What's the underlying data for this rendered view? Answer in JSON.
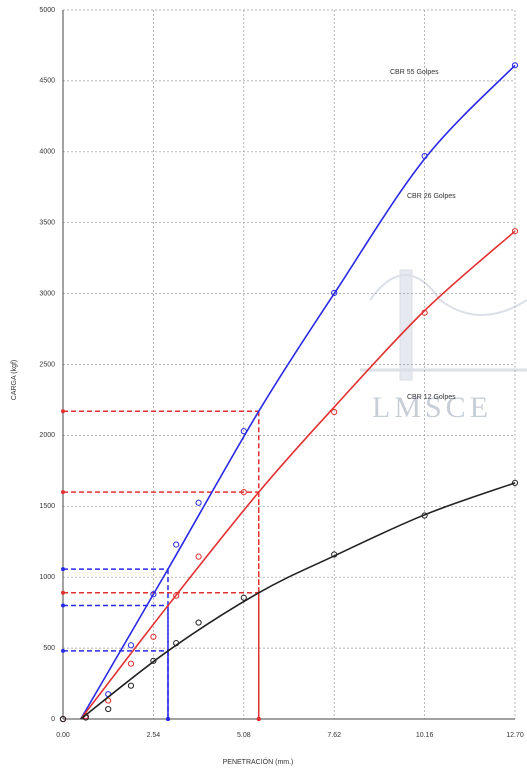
{
  "chart_data": {
    "type": "scatter",
    "x_label": "PENETRACIÓN (mm.)",
    "y_label": "CARGA (kgf)",
    "watermark": "LMSCE",
    "xlim": [
      0,
      12.7
    ],
    "ylim": [
      0,
      5000
    ],
    "xticks": [
      {
        "value": 0,
        "label": "0.00"
      },
      2.54,
      5.08,
      7.62,
      10.16,
      {
        "value": 12.7,
        "label": "12.70"
      }
    ],
    "yticks": [
      0,
      500,
      1000,
      1500,
      2000,
      2500,
      3000,
      3500,
      4000,
      4500,
      5000
    ],
    "grid": true,
    "series": [
      {
        "name": "CBR 55 Golpes",
        "color": "#2a2ae6",
        "x": [
          0,
          0.64,
          1.27,
          1.91,
          2.54,
          3.18,
          3.81,
          5.08,
          7.62,
          10.16,
          12.7
        ],
        "values": [
          0,
          20,
          175,
          520,
          880,
          1230,
          1525,
          2030,
          3005,
          3970,
          4610
        ],
        "fit": {
          "x": [
            0.5,
            2.95,
            5.5,
            7.62,
            10.16,
            12.7
          ],
          "values": [
            0,
            1057,
            2170,
            3000,
            3950,
            4610
          ]
        }
      },
      {
        "name": "CBR 26 Golpes",
        "color": "#e23030",
        "x": [
          0,
          0.64,
          1.27,
          1.91,
          2.54,
          3.18,
          3.81,
          5.08,
          7.62,
          10.16,
          12.7
        ],
        "values": [
          0,
          20,
          130,
          390,
          580,
          870,
          1145,
          1600,
          2165,
          2865,
          3440
        ],
        "fit": {
          "x": [
            0.5,
            2.95,
            5.5,
            7.62,
            10.16,
            12.7
          ],
          "values": [
            0,
            800,
            1600,
            2200,
            2880,
            3440
          ]
        }
      },
      {
        "name": "CBR 12 Golpes",
        "color": "#222222",
        "x": [
          0,
          0.64,
          1.27,
          1.91,
          2.54,
          3.18,
          3.81,
          5.08,
          7.62,
          10.16,
          12.7
        ],
        "values": [
          0,
          10,
          70,
          235,
          410,
          535,
          680,
          855,
          1160,
          1435,
          1665
        ],
        "fit": {
          "x": [
            0.5,
            2.95,
            5.5,
            7.62,
            10.16,
            12.7
          ],
          "values": [
            0,
            480,
            890,
            1150,
            1440,
            1665
          ]
        }
      }
    ],
    "reference_lines": [
      {
        "x": 2.95,
        "y": 1057,
        "color": "#2a2ae6"
      },
      {
        "x": 2.95,
        "y": 800,
        "color": "#2a2ae6"
      },
      {
        "x": 2.95,
        "y": 480,
        "color": "#2a2ae6"
      },
      {
        "x": 5.5,
        "y": 2170,
        "color": "#e23030"
      },
      {
        "x": 5.5,
        "y": 1600,
        "color": "#e23030"
      },
      {
        "x": 5.5,
        "y": 890,
        "color": "#e23030"
      }
    ]
  }
}
